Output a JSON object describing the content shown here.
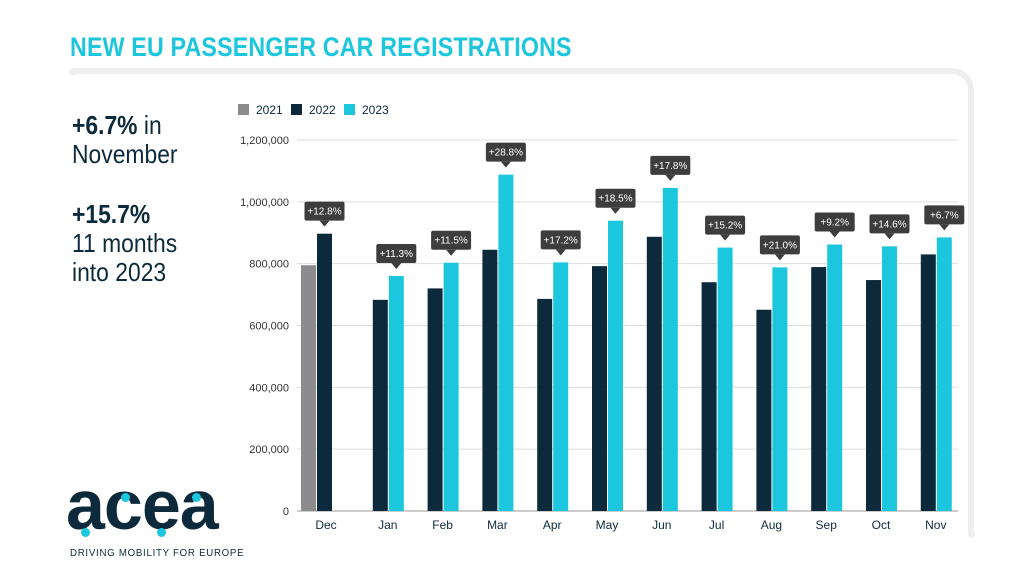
{
  "title": "NEW EU PASSENGER CAR REGISTRATIONS",
  "stats": {
    "monthly_value": "+6.7%",
    "monthly_text": " in",
    "monthly_line2": "November",
    "ytd_value": "+15.7%",
    "ytd_line2": "11 months",
    "ytd_line3": "into 2023"
  },
  "logo": {
    "word": "acea",
    "tagline": "DRIVING MOBILITY FOR EUROPE"
  },
  "colors": {
    "title": "#1cc6dc",
    "series_2021": "#8c8c8c",
    "series_2022": "#0d2a3c",
    "series_2023": "#1cc6dc",
    "label_box": "#3d3d3d",
    "text_dark": "#0d2a3c"
  },
  "chart_data": {
    "type": "bar",
    "categories": [
      "Dec",
      "Jan",
      "Feb",
      "Mar",
      "Apr",
      "May",
      "Jun",
      "Jul",
      "Aug",
      "Sep",
      "Oct",
      "Nov"
    ],
    "series": [
      {
        "name": "2021",
        "color": "#8c8c8c",
        "values": [
          795000,
          null,
          null,
          null,
          null,
          null,
          null,
          null,
          null,
          null,
          null,
          null
        ]
      },
      {
        "name": "2022",
        "color": "#0d2a3c",
        "values": [
          897000,
          683000,
          720000,
          845000,
          686000,
          792000,
          887000,
          740000,
          651000,
          789000,
          747000,
          830000
        ]
      },
      {
        "name": "2023",
        "color": "#1cc6dc",
        "values": [
          null,
          760000,
          803000,
          1088000,
          804000,
          939000,
          1045000,
          852000,
          788000,
          862000,
          856000,
          885000
        ]
      }
    ],
    "growth_labels": [
      "+12.8%",
      "+11.3%",
      "+11.5%",
      "+28.8%",
      "+17.2%",
      "+18.5%",
      "+17.8%",
      "+15.2%",
      "+21.0%",
      "+9.2%",
      "+14.6%",
      "+6.7%"
    ],
    "yticks": [
      0,
      200000,
      400000,
      600000,
      800000,
      1000000,
      1200000
    ],
    "ytick_labels": [
      "0",
      "200,000",
      "400,000",
      "600,000",
      "800,000",
      "1,000,000",
      "1,200,000"
    ],
    "ylim": [
      0,
      1200000
    ],
    "legend_position": "top-left",
    "grid": true
  }
}
